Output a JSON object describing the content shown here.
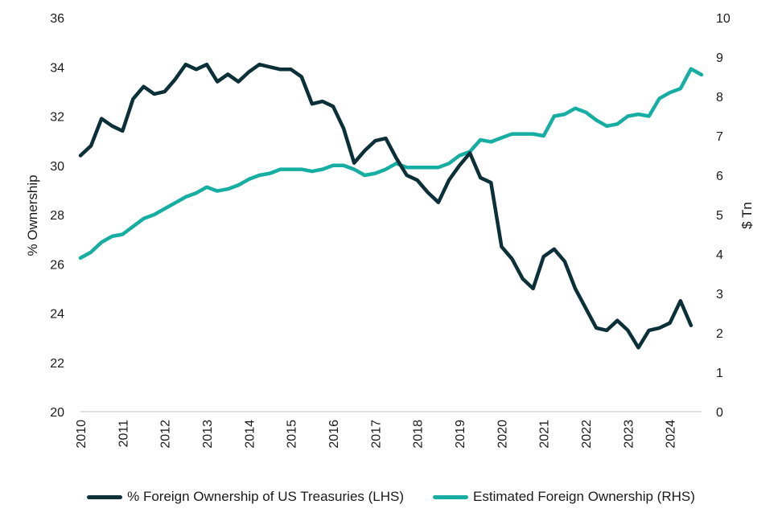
{
  "chart_data": {
    "type": "line",
    "xlabel": "",
    "ylabel_left": "% Ownership",
    "ylabel_right": "$ Tn",
    "ylim_left": [
      20,
      36
    ],
    "yticks_left": [
      "20",
      "22",
      "24",
      "26",
      "28",
      "30",
      "32",
      "34",
      "36"
    ],
    "ylim_right": [
      0,
      10
    ],
    "yticks_right": [
      "0",
      "1",
      "2",
      "3",
      "4",
      "5",
      "6",
      "7",
      "8",
      "9",
      "10"
    ],
    "xlim": [
      2010,
      2024.75
    ],
    "xticks": [
      "2010",
      "2011",
      "2012",
      "2013",
      "2014",
      "2015",
      "2016",
      "2017",
      "2018",
      "2019",
      "2020",
      "2021",
      "2022",
      "2023",
      "2024"
    ],
    "grid": false,
    "legend_position": "bottom",
    "x": [
      2010,
      2010.25,
      2010.5,
      2010.75,
      2011,
      2011.25,
      2011.5,
      2011.75,
      2012,
      2012.25,
      2012.5,
      2012.75,
      2013,
      2013.25,
      2013.5,
      2013.75,
      2014,
      2014.25,
      2014.5,
      2014.75,
      2015,
      2015.25,
      2015.5,
      2015.75,
      2016,
      2016.25,
      2016.5,
      2016.75,
      2017,
      2017.25,
      2017.5,
      2017.75,
      2018,
      2018.25,
      2018.5,
      2018.75,
      2019,
      2019.25,
      2019.5,
      2019.75,
      2020,
      2020.25,
      2020.5,
      2020.75,
      2021,
      2021.25,
      2021.5,
      2021.75,
      2022,
      2022.25,
      2022.5,
      2022.75,
      2023,
      2023.25,
      2023.5,
      2023.75,
      2024,
      2024.25,
      2024.5,
      2024.75
    ],
    "series": [
      {
        "name": "% Foreign Ownership of US Treasuries (LHS)",
        "axis": "left",
        "color": "#0b3038",
        "values": [
          30.4,
          30.8,
          31.9,
          31.6,
          31.4,
          32.7,
          33.2,
          32.9,
          33.0,
          33.5,
          34.1,
          33.9,
          34.1,
          33.4,
          33.7,
          33.4,
          33.8,
          34.1,
          34.0,
          33.9,
          33.9,
          33.6,
          32.5,
          32.6,
          32.4,
          31.5,
          30.1,
          30.6,
          31.0,
          31.1,
          30.3,
          29.6,
          29.4,
          28.9,
          28.5,
          29.4,
          30.0,
          30.5,
          29.5,
          29.3,
          26.7,
          26.2,
          25.4,
          25.0,
          26.3,
          26.6,
          26.1,
          25.0,
          24.2,
          23.4,
          23.3,
          23.7,
          23.3,
          22.6,
          23.3,
          23.4,
          23.6,
          24.5,
          23.5,
          null
        ]
      },
      {
        "name": "Estimated Foreign Ownership (RHS)",
        "axis": "right",
        "color": "#16ada3",
        "values": [
          3.9,
          4.05,
          4.3,
          4.45,
          4.5,
          4.7,
          4.9,
          5.0,
          5.15,
          5.3,
          5.45,
          5.55,
          5.7,
          5.6,
          5.65,
          5.75,
          5.9,
          6.0,
          6.05,
          6.15,
          6.15,
          6.15,
          6.1,
          6.15,
          6.25,
          6.25,
          6.15,
          6.0,
          6.05,
          6.15,
          6.3,
          6.2,
          6.2,
          6.2,
          6.2,
          6.3,
          6.5,
          6.6,
          6.9,
          6.85,
          6.95,
          7.05,
          7.05,
          7.05,
          7.0,
          7.5,
          7.55,
          7.7,
          7.6,
          7.4,
          7.25,
          7.3,
          7.5,
          7.55,
          7.5,
          7.95,
          8.1,
          8.2,
          8.7,
          8.55
        ]
      }
    ]
  }
}
